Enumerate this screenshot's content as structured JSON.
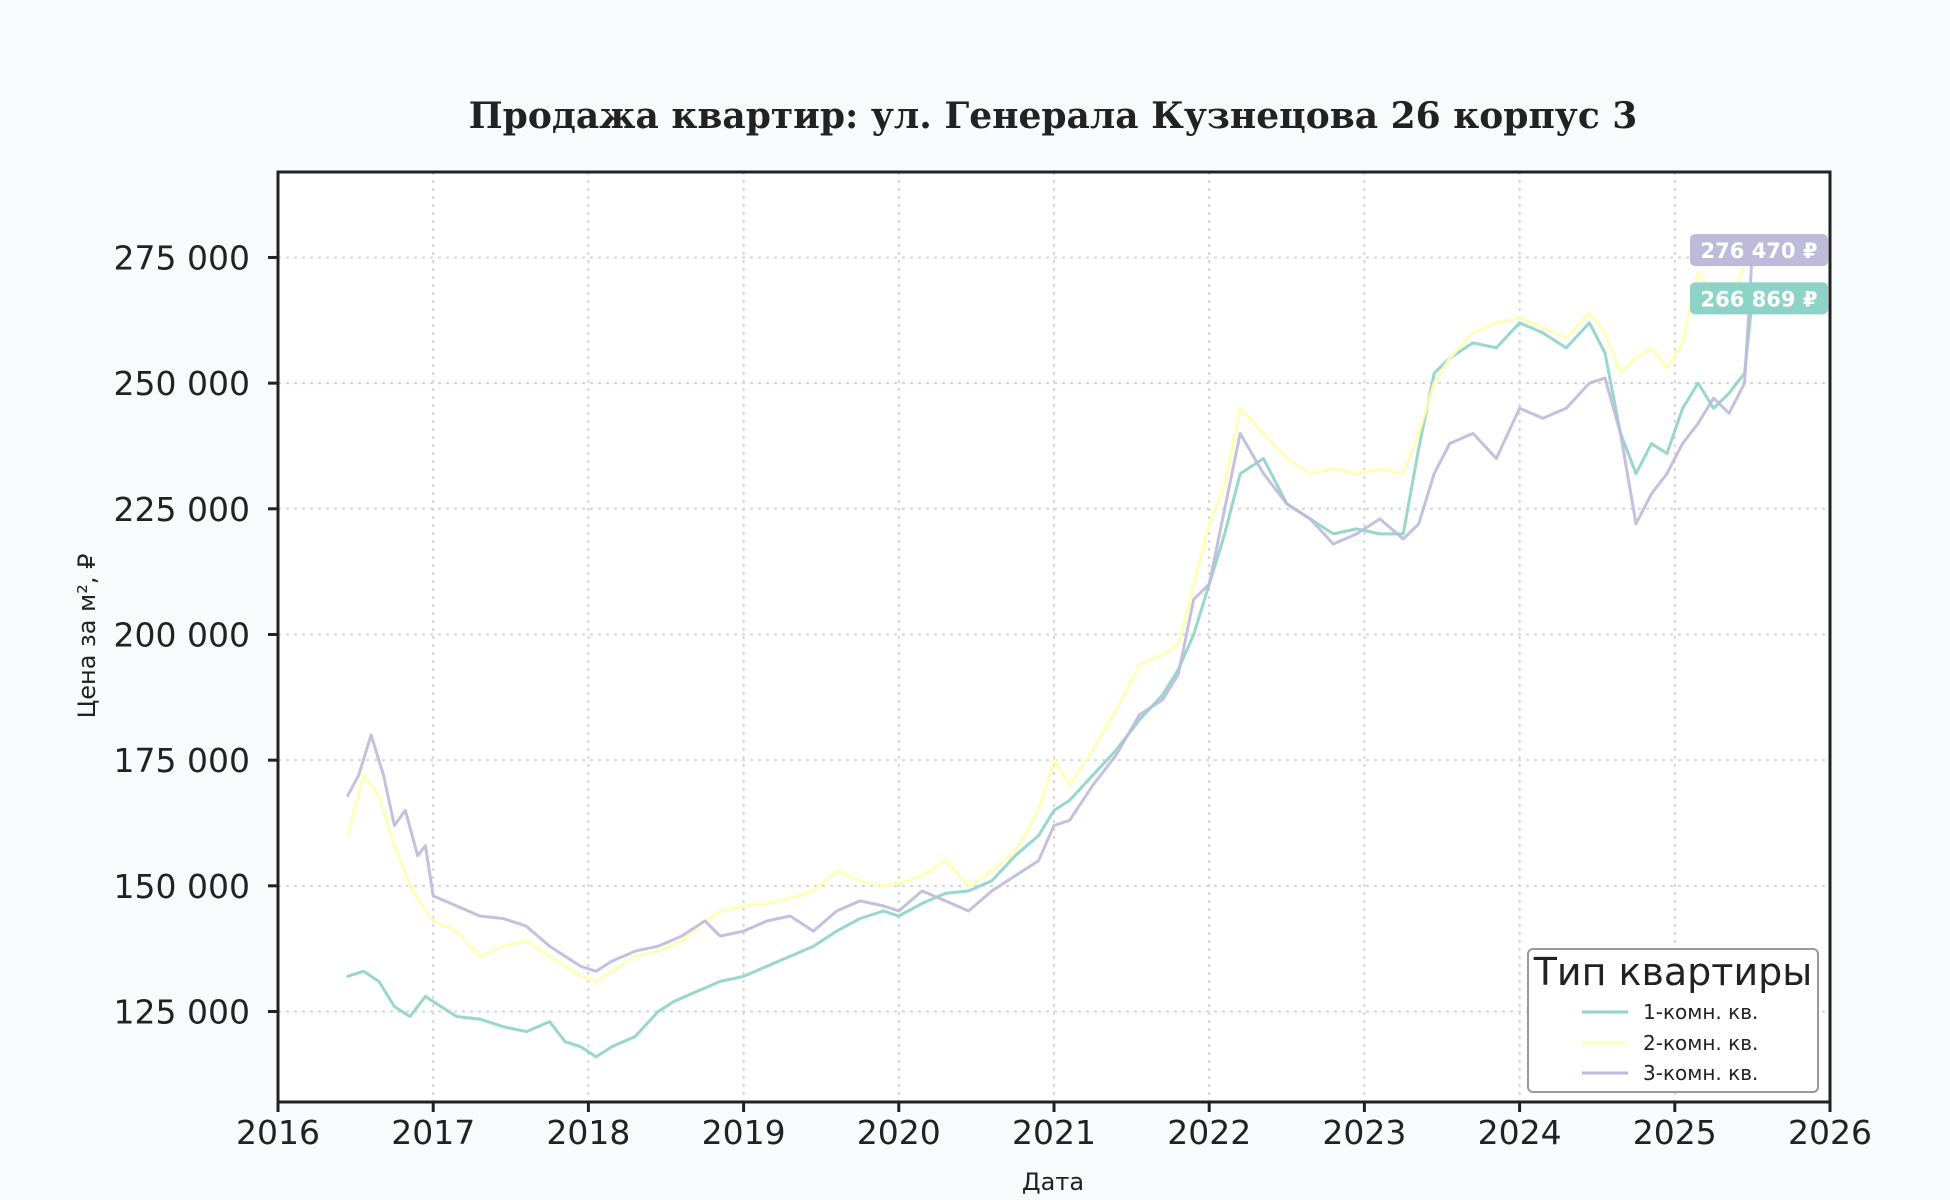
{
  "chart_data": {
    "type": "line",
    "title": "Продажа квартир: ул. Генерала Кузнецова 26 корпус 3",
    "xlabel": "Дата",
    "ylabel": "Цена за м², ₽",
    "xlim": [
      2016.0,
      2026.0
    ],
    "ylim": [
      107000,
      292000
    ],
    "x_ticks": [
      2016,
      2017,
      2018,
      2019,
      2020,
      2021,
      2022,
      2023,
      2024,
      2025,
      2026
    ],
    "x_tick_labels": [
      "2016",
      "2017",
      "2018",
      "2019",
      "2020",
      "2021",
      "2022",
      "2023",
      "2024",
      "2025",
      "2026"
    ],
    "y_ticks": [
      125000,
      150000,
      175000,
      200000,
      225000,
      250000,
      275000
    ],
    "y_tick_labels": [
      "125 000",
      "150 000",
      "175 000",
      "200 000",
      "225 000",
      "250 000",
      "275 000"
    ],
    "grid": true,
    "legend": {
      "title": "Тип квартиры",
      "placement": "lower-right"
    },
    "series": [
      {
        "name": "1-комн. кв.",
        "color": "#8dd3c7",
        "x": [
          2016.45,
          2016.55,
          2016.65,
          2016.75,
          2016.85,
          2016.95,
          2017.0,
          2017.15,
          2017.3,
          2017.45,
          2017.6,
          2017.75,
          2017.85,
          2017.95,
          2018.05,
          2018.15,
          2018.3,
          2018.45,
          2018.55,
          2018.7,
          2018.85,
          2019.0,
          2019.15,
          2019.3,
          2019.45,
          2019.6,
          2019.75,
          2019.9,
          2020.0,
          2020.15,
          2020.3,
          2020.45,
          2020.6,
          2020.75,
          2020.9,
          2021.0,
          2021.1,
          2021.25,
          2021.4,
          2021.55,
          2021.7,
          2021.8,
          2021.9,
          2022.0,
          2022.1,
          2022.2,
          2022.35,
          2022.5,
          2022.65,
          2022.8,
          2022.95,
          2023.1,
          2023.25,
          2023.35,
          2023.45,
          2023.55,
          2023.7,
          2023.85,
          2024.0,
          2024.15,
          2024.3,
          2024.45,
          2024.55,
          2024.65,
          2024.75,
          2024.85,
          2024.95,
          2025.05,
          2025.15,
          2025.25,
          2025.35,
          2025.45,
          2025.5
        ],
        "y": [
          132000,
          133000,
          131000,
          126000,
          124000,
          128000,
          127000,
          124000,
          123500,
          122000,
          121000,
          123000,
          119000,
          118000,
          116000,
          118000,
          120000,
          125000,
          127000,
          129000,
          131000,
          132000,
          134000,
          136000,
          138000,
          141000,
          143500,
          145000,
          144000,
          146500,
          148500,
          149000,
          151000,
          156000,
          160000,
          165000,
          167000,
          172000,
          177000,
          183000,
          188000,
          193000,
          200000,
          210000,
          220000,
          232000,
          235000,
          226000,
          223000,
          220000,
          221000,
          220000,
          220000,
          237000,
          252000,
          255000,
          258000,
          257000,
          262000,
          260000,
          257000,
          262000,
          256000,
          240000,
          232000,
          238000,
          236000,
          245000,
          250000,
          245000,
          248000,
          252000,
          266869
        ]
      },
      {
        "name": "2-комн. кв.",
        "color": "#ffffb3",
        "x": [
          2016.45,
          2016.55,
          2016.65,
          2016.75,
          2016.85,
          2016.95,
          2017.0,
          2017.15,
          2017.3,
          2017.45,
          2017.6,
          2017.75,
          2017.85,
          2017.95,
          2018.05,
          2018.15,
          2018.3,
          2018.45,
          2018.6,
          2018.75,
          2018.85,
          2019.0,
          2019.15,
          2019.3,
          2019.45,
          2019.6,
          2019.75,
          2019.9,
          2020.0,
          2020.15,
          2020.3,
          2020.45,
          2020.6,
          2020.75,
          2020.9,
          2021.0,
          2021.1,
          2021.25,
          2021.4,
          2021.55,
          2021.7,
          2021.8,
          2021.9,
          2022.0,
          2022.1,
          2022.2,
          2022.35,
          2022.5,
          2022.65,
          2022.8,
          2022.95,
          2023.1,
          2023.25,
          2023.35,
          2023.45,
          2023.55,
          2023.7,
          2023.85,
          2024.0,
          2024.15,
          2024.3,
          2024.45,
          2024.55,
          2024.65,
          2024.75,
          2024.85,
          2024.95,
          2025.05,
          2025.15,
          2025.25,
          2025.35,
          2025.45,
          2025.5
        ],
        "y": [
          160000,
          172000,
          168000,
          158000,
          150000,
          145000,
          143000,
          141000,
          136000,
          138000,
          139000,
          136000,
          134000,
          132000,
          131000,
          133000,
          136000,
          137000,
          139000,
          143000,
          145000,
          146000,
          146500,
          147500,
          149000,
          153000,
          151000,
          150000,
          150500,
          152000,
          155000,
          150000,
          153000,
          157000,
          165000,
          175000,
          170000,
          177000,
          185000,
          194000,
          196000,
          198000,
          210000,
          222000,
          230000,
          245000,
          240000,
          235000,
          232000,
          233000,
          232000,
          233000,
          232000,
          240000,
          250000,
          255000,
          260000,
          262000,
          263000,
          261000,
          259000,
          264000,
          260000,
          252000,
          255000,
          257000,
          253000,
          258000,
          272000,
          268000,
          265000,
          274000,
          276000
        ]
      },
      {
        "name": "3-комн. кв.",
        "color": "#bebada",
        "x": [
          2016.45,
          2016.52,
          2016.6,
          2016.68,
          2016.75,
          2016.82,
          2016.9,
          2016.95,
          2017.0,
          2017.15,
          2017.3,
          2017.45,
          2017.6,
          2017.75,
          2017.85,
          2017.95,
          2018.05,
          2018.15,
          2018.3,
          2018.45,
          2018.6,
          2018.75,
          2018.85,
          2019.0,
          2019.15,
          2019.3,
          2019.45,
          2019.6,
          2019.75,
          2019.9,
          2020.0,
          2020.15,
          2020.3,
          2020.45,
          2020.6,
          2020.75,
          2020.9,
          2021.0,
          2021.1,
          2021.25,
          2021.4,
          2021.55,
          2021.7,
          2021.8,
          2021.9,
          2022.0,
          2022.1,
          2022.2,
          2022.35,
          2022.5,
          2022.65,
          2022.8,
          2022.95,
          2023.1,
          2023.25,
          2023.35,
          2023.45,
          2023.55,
          2023.7,
          2023.85,
          2024.0,
          2024.15,
          2024.3,
          2024.45,
          2024.55,
          2024.65,
          2024.75,
          2024.85,
          2024.95,
          2025.05,
          2025.15,
          2025.25,
          2025.35,
          2025.45,
          2025.5
        ],
        "y": [
          168000,
          172000,
          180000,
          172000,
          162000,
          165000,
          156000,
          158000,
          148000,
          146000,
          144000,
          143500,
          142000,
          138000,
          136000,
          134000,
          133000,
          135000,
          137000,
          138000,
          140000,
          143000,
          140000,
          141000,
          143000,
          144000,
          141000,
          145000,
          147000,
          146000,
          145000,
          149000,
          147000,
          145000,
          149000,
          152000,
          155000,
          162000,
          163000,
          170000,
          176000,
          184000,
          187000,
          192000,
          207000,
          210000,
          225000,
          240000,
          232000,
          226000,
          223000,
          218000,
          220000,
          223000,
          219000,
          222000,
          232000,
          238000,
          240000,
          235000,
          245000,
          243000,
          245000,
          250000,
          251000,
          240000,
          222000,
          228000,
          232000,
          238000,
          242000,
          247000,
          244000,
          250000,
          276470
        ]
      }
    ],
    "end_labels": [
      {
        "series": "3-комн. кв.",
        "text": "276 470 ₽",
        "value": 276470,
        "color": "#bebada"
      },
      {
        "series": "1-комн. кв.",
        "text": "266 869 ₽",
        "value": 266869,
        "color": "#8dd3c7"
      }
    ]
  }
}
